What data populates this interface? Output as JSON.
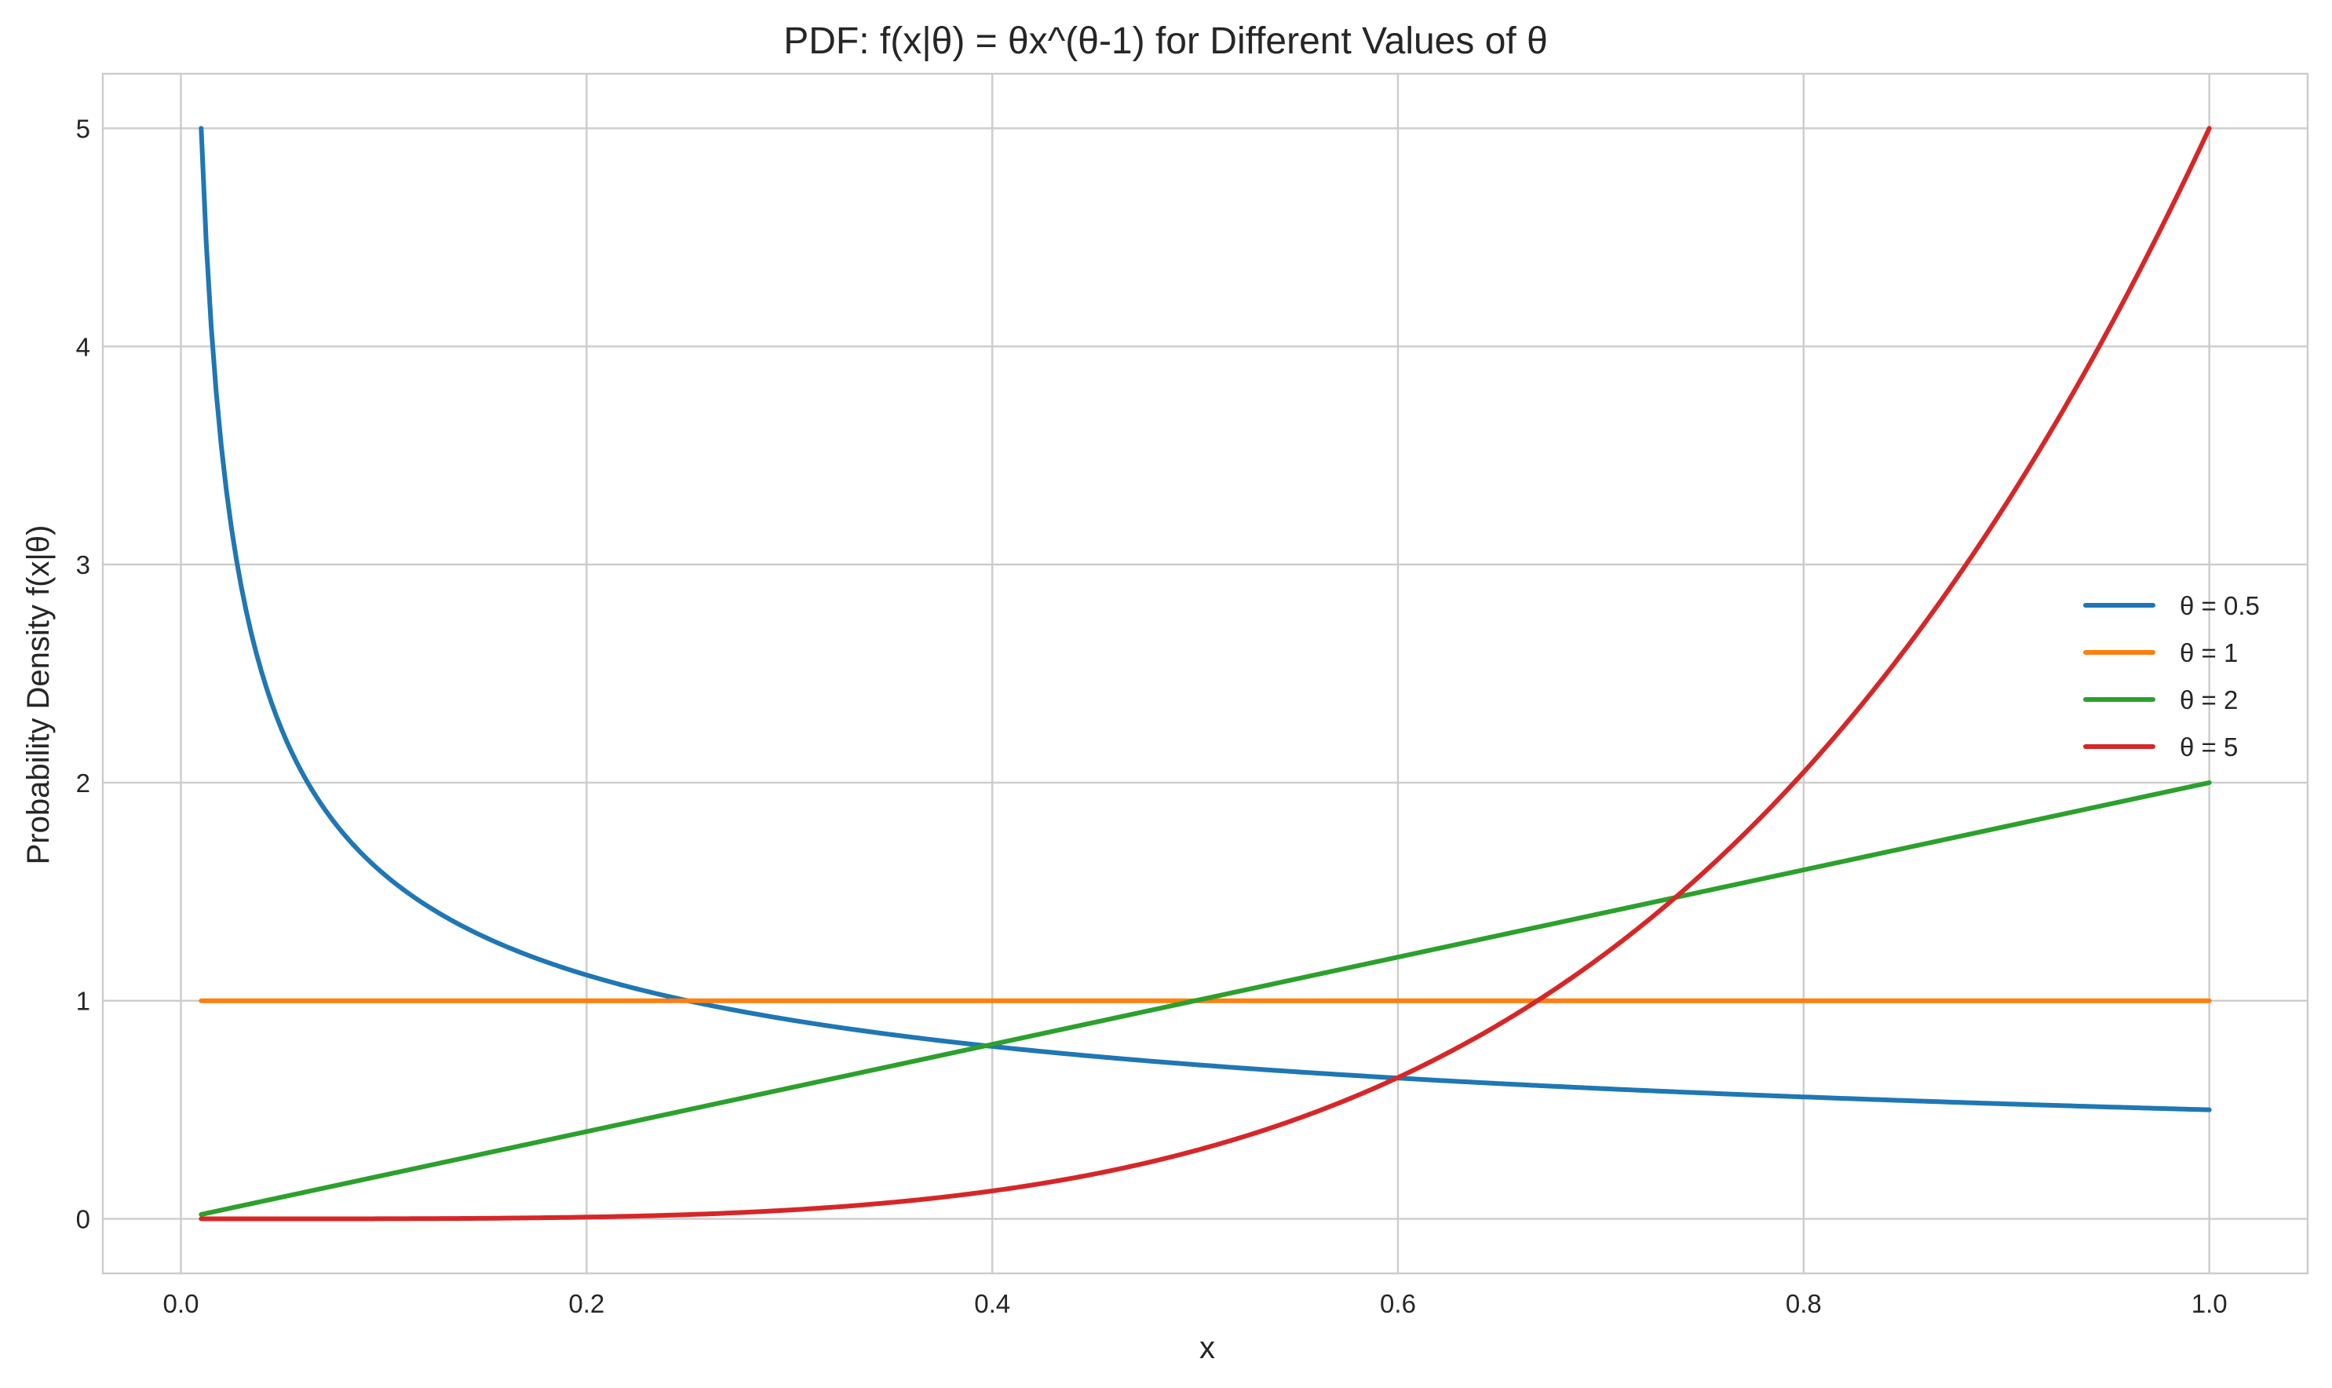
{
  "chart_data": {
    "type": "line",
    "title": "PDF: f(x|θ) = θx^(θ-1) for Different Values of θ",
    "xlabel": "x",
    "ylabel": "Probability Density f(x|θ)",
    "xlim": [
      -0.0385,
      1.0485
    ],
    "ylim": [
      -0.25,
      5.25
    ],
    "x_ticks": [
      0.0,
      0.2,
      0.4,
      0.6,
      0.8,
      1.0
    ],
    "x_tick_labels": [
      "0.0",
      "0.2",
      "0.4",
      "0.6",
      "0.8",
      "1.0"
    ],
    "y_ticks": [
      0,
      1,
      2,
      3,
      4,
      5
    ],
    "y_tick_labels": [
      "0",
      "1",
      "2",
      "3",
      "4",
      "5"
    ],
    "grid": true,
    "legend_position": "center-right",
    "x_domain": [
      0.01,
      1.0
    ],
    "x": [
      0.01,
      0.02,
      0.03,
      0.04,
      0.05,
      0.06,
      0.08,
      0.1,
      0.12,
      0.15,
      0.2,
      0.25,
      0.3,
      0.35,
      0.4,
      0.45,
      0.5,
      0.55,
      0.6,
      0.65,
      0.7,
      0.75,
      0.8,
      0.85,
      0.9,
      0.95,
      1.0
    ],
    "series": [
      {
        "name": "θ = 0.5",
        "theta": 0.5,
        "color": "#1f77b4",
        "values": [
          5.0,
          3.536,
          2.887,
          2.5,
          2.236,
          2.041,
          1.768,
          1.581,
          1.443,
          1.291,
          1.118,
          1.0,
          0.913,
          0.845,
          0.791,
          0.745,
          0.707,
          0.674,
          0.645,
          0.62,
          0.598,
          0.577,
          0.559,
          0.542,
          0.527,
          0.513,
          0.5
        ]
      },
      {
        "name": "θ = 1",
        "theta": 1,
        "color": "#ff7f0e",
        "values": [
          1,
          1,
          1,
          1,
          1,
          1,
          1,
          1,
          1,
          1,
          1,
          1,
          1,
          1,
          1,
          1,
          1,
          1,
          1,
          1,
          1,
          1,
          1,
          1,
          1,
          1,
          1
        ]
      },
      {
        "name": "θ = 2",
        "theta": 2,
        "color": "#2ca02c",
        "values": [
          0.02,
          0.04,
          0.06,
          0.08,
          0.1,
          0.12,
          0.16,
          0.2,
          0.24,
          0.3,
          0.4,
          0.5,
          0.6,
          0.7,
          0.8,
          0.9,
          1.0,
          1.1,
          1.2,
          1.3,
          1.4,
          1.5,
          1.6,
          1.7,
          1.8,
          1.9,
          2.0
        ]
      },
      {
        "name": "θ = 5",
        "theta": 5,
        "color": "#d62728",
        "values": [
          0.0,
          0.0,
          0.0,
          0.0,
          0.0,
          0.0001,
          0.0002,
          0.0005,
          0.001,
          0.0025,
          0.008,
          0.0195,
          0.0405,
          0.075,
          0.128,
          0.205,
          0.3125,
          0.4575,
          0.648,
          0.8925,
          1.2005,
          1.582,
          2.048,
          2.61,
          3.2805,
          4.0725,
          5.0
        ]
      }
    ]
  }
}
